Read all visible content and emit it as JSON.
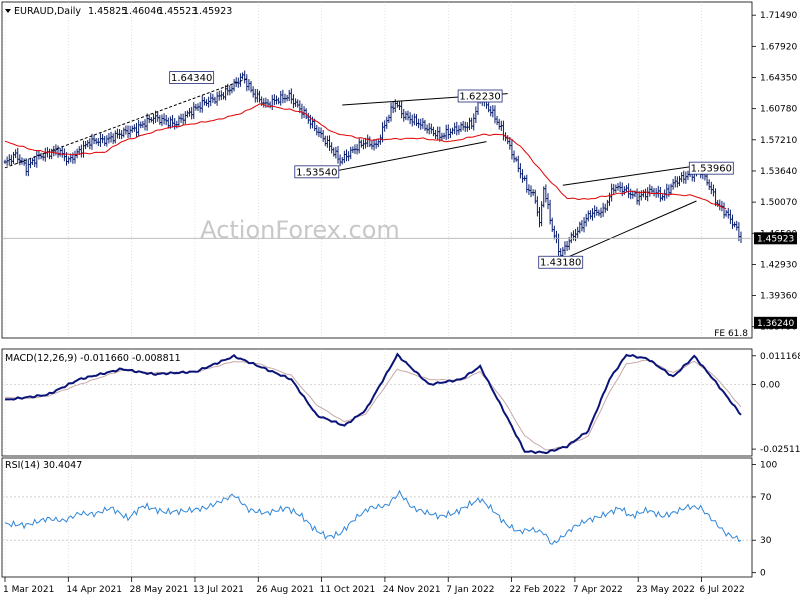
{
  "chart_data": [
    {
      "id": "price",
      "type": "candlestick",
      "symbol": "EURAUD,Daily",
      "ohlc": [
        "1.45825",
        "1.46046",
        "1.45523",
        "1.45923"
      ],
      "ylim": [
        1.345,
        1.73
      ],
      "y_ticks": [
        "1.71490",
        "1.67920",
        "1.64350",
        "1.60780",
        "1.57210",
        "1.53640",
        "1.50070",
        "1.46500",
        "1.42930",
        "1.39360",
        "1.35790"
      ],
      "x_ticks": [
        "1 Mar 2021",
        "14 Apr 2021",
        "28 May 2021",
        "13 Jul 2021",
        "26 Aug 2021",
        "11 Oct 2021",
        "24 Nov 2021",
        "7 Jan 2022",
        "22 Feb 2022",
        "7 Apr 2022",
        "23 May 2022",
        "6 Jul 2022"
      ],
      "last_price_label": "1.45923",
      "last_price": 1.45923,
      "fe_label": "FE 61.8",
      "fe_price_label": "1.36240",
      "fe_price": 1.3624,
      "watermark": "ActionForex.com",
      "annotations": [
        {
          "text": "1.64340",
          "x": 88,
          "y": 1.6434
        },
        {
          "text": "1.53540",
          "x": 147,
          "y": 1.5354
        },
        {
          "text": "1.62230",
          "x": 224,
          "y": 1.6223
        },
        {
          "text": "1.43180",
          "x": 262,
          "y": 1.4318
        },
        {
          "text": "1.53960",
          "x": 333,
          "y": 1.5396
        }
      ],
      "trendlines": [
        {
          "name": "uptrend-2021",
          "style": "dashed",
          "points": [
            [
              0,
              1.54
            ],
            [
              114,
              1.642
            ]
          ]
        },
        {
          "name": "range-top-2021",
          "style": "solid",
          "points": [
            [
              159,
              1.612
            ],
            [
              237,
              1.625
            ]
          ]
        },
        {
          "name": "range-bottom-2021",
          "style": "solid",
          "points": [
            [
              155,
              1.536
            ],
            [
              227,
              1.57
            ]
          ]
        },
        {
          "name": "wedge-top-2022",
          "style": "solid",
          "points": [
            [
              263,
              1.52
            ],
            [
              328,
              1.543
            ]
          ]
        },
        {
          "name": "wedge-bottom-2022",
          "style": "solid",
          "points": [
            [
              260,
              1.432
            ],
            [
              326,
              1.502
            ]
          ]
        }
      ],
      "ma_series": {
        "name": "",
        "color": "#e00000",
        "points": [
          [
            0,
            1.57
          ],
          [
            14,
            1.56
          ],
          [
            30,
            1.555
          ],
          [
            47,
            1.558
          ],
          [
            55,
            1.57
          ],
          [
            75,
            1.585
          ],
          [
            100,
            1.595
          ],
          [
            112,
            1.603
          ],
          [
            120,
            1.613
          ],
          [
            140,
            1.604
          ],
          [
            155,
            1.58
          ],
          [
            172,
            1.572
          ],
          [
            195,
            1.574
          ],
          [
            210,
            1.57
          ],
          [
            225,
            1.578
          ],
          [
            235,
            1.578
          ],
          [
            243,
            1.565
          ],
          [
            255,
            1.53
          ],
          [
            265,
            1.505
          ],
          [
            275,
            1.504
          ],
          [
            295,
            1.513
          ],
          [
            310,
            1.51
          ],
          [
            325,
            1.508
          ],
          [
            335,
            1.498
          ],
          [
            340,
            1.493
          ]
        ]
      },
      "close_series": [
        [
          0,
          1.545
        ],
        [
          5,
          1.555
        ],
        [
          10,
          1.54
        ],
        [
          15,
          1.552
        ],
        [
          25,
          1.56
        ],
        [
          30,
          1.548
        ],
        [
          40,
          1.57
        ],
        [
          48,
          1.572
        ],
        [
          55,
          1.58
        ],
        [
          62,
          1.585
        ],
        [
          70,
          1.598
        ],
        [
          80,
          1.59
        ],
        [
          88,
          1.605
        ],
        [
          94,
          1.615
        ],
        [
          100,
          1.62
        ],
        [
          106,
          1.63
        ],
        [
          112,
          1.645
        ],
        [
          117,
          1.625
        ],
        [
          123,
          1.612
        ],
        [
          128,
          1.618
        ],
        [
          134,
          1.622
        ],
        [
          140,
          1.605
        ],
        [
          146,
          1.586
        ],
        [
          152,
          1.568
        ],
        [
          158,
          1.548
        ],
        [
          165,
          1.562
        ],
        [
          170,
          1.57
        ],
        [
          175,
          1.565
        ],
        [
          180,
          1.595
        ],
        [
          184,
          1.615
        ],
        [
          188,
          1.6
        ],
        [
          196,
          1.59
        ],
        [
          205,
          1.576
        ],
        [
          212,
          1.584
        ],
        [
          220,
          1.59
        ],
        [
          224,
          1.62
        ],
        [
          230,
          1.602
        ],
        [
          236,
          1.575
        ],
        [
          242,
          1.54
        ],
        [
          246,
          1.518
        ],
        [
          250,
          1.505
        ],
        [
          252,
          1.475
        ],
        [
          254,
          1.518
        ],
        [
          258,
          1.47
        ],
        [
          262,
          1.44
        ],
        [
          266,
          1.457
        ],
        [
          270,
          1.468
        ],
        [
          276,
          1.488
        ],
        [
          282,
          1.49
        ],
        [
          287,
          1.518
        ],
        [
          292,
          1.515
        ],
        [
          298,
          1.506
        ],
        [
          305,
          1.514
        ],
        [
          310,
          1.507
        ],
        [
          316,
          1.524
        ],
        [
          322,
          1.532
        ],
        [
          328,
          1.536
        ],
        [
          332,
          1.52
        ],
        [
          336,
          1.498
        ],
        [
          340,
          1.488
        ],
        [
          344,
          1.474
        ],
        [
          347,
          1.459
        ]
      ]
    },
    {
      "id": "macd",
      "type": "line",
      "label": "MACD(12,26,9) -0.011660 -0.008811",
      "ylim": [
        -0.0278,
        0.0138
      ],
      "y_ticks": [
        "0.011168",
        "0.00",
        "-0.025117"
      ],
      "macd": [
        [
          0,
          -0.006
        ],
        [
          10,
          -0.005
        ],
        [
          20,
          -0.004
        ],
        [
          35,
          0.002
        ],
        [
          55,
          0.006
        ],
        [
          70,
          0.004
        ],
        [
          90,
          0.005
        ],
        [
          108,
          0.011
        ],
        [
          120,
          0.007
        ],
        [
          135,
          0.002
        ],
        [
          147,
          -0.012
        ],
        [
          160,
          -0.016
        ],
        [
          170,
          -0.01
        ],
        [
          185,
          0.0115
        ],
        [
          200,
          0.0
        ],
        [
          215,
          0.002
        ],
        [
          224,
          0.007
        ],
        [
          235,
          -0.01
        ],
        [
          245,
          -0.026
        ],
        [
          255,
          -0.0265
        ],
        [
          265,
          -0.024
        ],
        [
          275,
          -0.018
        ],
        [
          285,
          0.002
        ],
        [
          293,
          0.0115
        ],
        [
          303,
          0.01
        ],
        [
          315,
          0.003
        ],
        [
          325,
          0.011
        ],
        [
          335,
          0.001
        ],
        [
          347,
          -0.0118
        ]
      ],
      "signal": [
        [
          0,
          -0.005
        ],
        [
          10,
          -0.0055
        ],
        [
          20,
          -0.0045
        ],
        [
          35,
          0.0
        ],
        [
          55,
          0.0055
        ],
        [
          70,
          0.0045
        ],
        [
          90,
          0.0048
        ],
        [
          108,
          0.009
        ],
        [
          120,
          0.008
        ],
        [
          135,
          0.0035
        ],
        [
          147,
          -0.008
        ],
        [
          160,
          -0.0145
        ],
        [
          170,
          -0.0115
        ],
        [
          185,
          0.006
        ],
        [
          200,
          0.002
        ],
        [
          215,
          0.0015
        ],
        [
          224,
          0.005
        ],
        [
          235,
          -0.006
        ],
        [
          245,
          -0.02
        ],
        [
          255,
          -0.0255
        ],
        [
          265,
          -0.024
        ],
        [
          275,
          -0.02
        ],
        [
          285,
          -0.003
        ],
        [
          293,
          0.008
        ],
        [
          303,
          0.0095
        ],
        [
          315,
          0.0045
        ],
        [
          325,
          0.009
        ],
        [
          335,
          0.003
        ],
        [
          347,
          -0.0088
        ]
      ]
    },
    {
      "id": "rsi",
      "type": "line",
      "label": "RSI(14) 30.4047",
      "ylim": [
        -4,
        106
      ],
      "y_ticks": [
        "100",
        "70",
        "30",
        "0"
      ],
      "levels": [
        70,
        30
      ],
      "values": [
        [
          0,
          45
        ],
        [
          10,
          44
        ],
        [
          20,
          50
        ],
        [
          28,
          48
        ],
        [
          35,
          55
        ],
        [
          42,
          54
        ],
        [
          50,
          60
        ],
        [
          58,
          50
        ],
        [
          65,
          62
        ],
        [
          75,
          56
        ],
        [
          85,
          57
        ],
        [
          95,
          60
        ],
        [
          108,
          72
        ],
        [
          115,
          58
        ],
        [
          123,
          55
        ],
        [
          133,
          60
        ],
        [
          140,
          52
        ],
        [
          146,
          40
        ],
        [
          152,
          33
        ],
        [
          158,
          36
        ],
        [
          165,
          50
        ],
        [
          172,
          60
        ],
        [
          180,
          62
        ],
        [
          186,
          74
        ],
        [
          192,
          60
        ],
        [
          198,
          56
        ],
        [
          205,
          52
        ],
        [
          212,
          55
        ],
        [
          218,
          62
        ],
        [
          224,
          68
        ],
        [
          230,
          58
        ],
        [
          236,
          45
        ],
        [
          242,
          38
        ],
        [
          248,
          40
        ],
        [
          254,
          37
        ],
        [
          258,
          26
        ],
        [
          262,
          32
        ],
        [
          268,
          42
        ],
        [
          274,
          48
        ],
        [
          282,
          53
        ],
        [
          290,
          60
        ],
        [
          295,
          52
        ],
        [
          303,
          58
        ],
        [
          310,
          52
        ],
        [
          316,
          56
        ],
        [
          322,
          61
        ],
        [
          328,
          60
        ],
        [
          334,
          48
        ],
        [
          340,
          36
        ],
        [
          347,
          30
        ]
      ]
    }
  ],
  "colors": {
    "ohlc": "#0a1e6e",
    "ma": "#e00000",
    "macd": "#0a1478",
    "signal": "#c8a8a8",
    "rsi": "#2f86d8",
    "grid": "#c8c8c8",
    "watermark": "#c8c8c8"
  }
}
